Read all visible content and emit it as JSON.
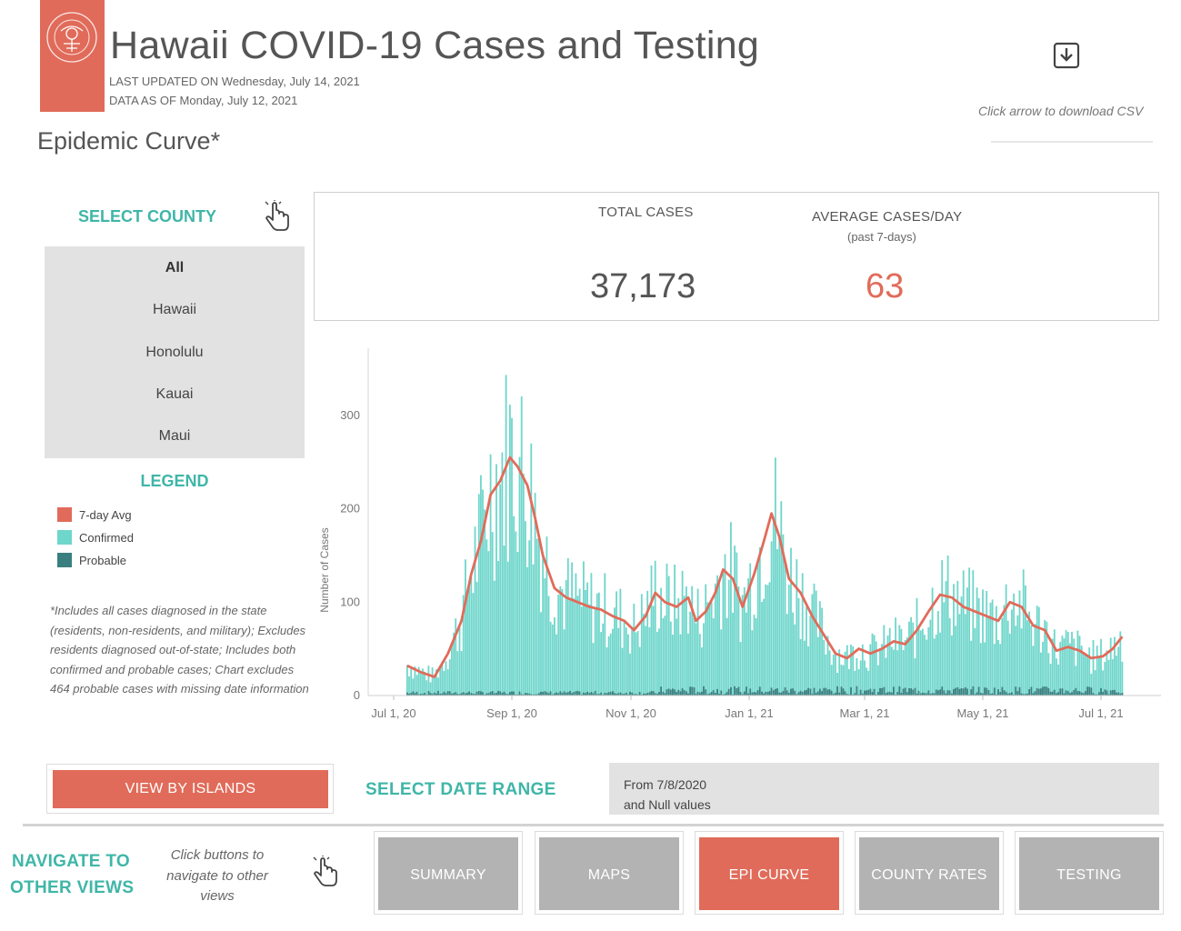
{
  "header": {
    "title": "Hawaii COVID-19 Cases and Testing",
    "last_updated": "LAST UPDATED ON Wednesday, July 14, 2021",
    "data_as_of": "DATA AS OF Monday, July 12, 2021",
    "download_hint": "Click arrow to download CSV",
    "download_icon": "download-arrow-icon",
    "logo": "state-seal-logo"
  },
  "section_title": "Epidemic Curve*",
  "county_filter": {
    "heading": "SELECT COUNTY",
    "options": [
      "All",
      "Hawaii",
      "Honolulu",
      "Kauai",
      "Maui"
    ],
    "selected": "All"
  },
  "legend": {
    "heading": "LEGEND",
    "items": [
      {
        "label": "7-day Avg",
        "color": "#e16b5a"
      },
      {
        "label": "Confirmed",
        "color": "#6fd6cb"
      },
      {
        "label": "Probable",
        "color": "#3a7f80"
      }
    ]
  },
  "footnote": "*Includes all cases diagnosed in the state (residents, non-residents, and military); Excludes residents diagnosed out-of-state; Includes both confirmed and probable cases; Chart excludes 464 probable cases with missing date information",
  "kpis": {
    "total_label": "TOTAL CASES",
    "total_value": "37,173",
    "avg_label": "AVERAGE CASES/DAY",
    "avg_sub": "(past 7-days)",
    "avg_value": "63"
  },
  "chart_data": {
    "type": "bar",
    "ylabel": "Number of Cases",
    "xlabel": "",
    "ylim": [
      0,
      370
    ],
    "yticks": [
      0,
      100,
      200,
      300
    ],
    "xticks": [
      "Jul 1, 20",
      "Sep 1, 20",
      "Nov 1, 20",
      "Jan 1, 21",
      "Mar 1, 21",
      "May 1, 21",
      "Jul 1, 21"
    ],
    "x_start": "2020-07-08",
    "x_end": "2021-07-12",
    "series": [
      {
        "name": "Confirmed",
        "color": "#6fd6cb"
      },
      {
        "name": "Probable",
        "color": "#3a7f80"
      },
      {
        "name": "7-day Avg",
        "color": "#e16b5a"
      }
    ],
    "avg_points": [
      [
        "2020-07-08",
        32
      ],
      [
        "2020-07-15",
        25
      ],
      [
        "2020-07-22",
        20
      ],
      [
        "2020-07-29",
        45
      ],
      [
        "2020-08-05",
        80
      ],
      [
        "2020-08-10",
        130
      ],
      [
        "2020-08-15",
        165
      ],
      [
        "2020-08-20",
        215
      ],
      [
        "2020-08-25",
        230
      ],
      [
        "2020-08-30",
        255
      ],
      [
        "2020-09-03",
        245
      ],
      [
        "2020-09-08",
        225
      ],
      [
        "2020-09-12",
        190
      ],
      [
        "2020-09-16",
        150
      ],
      [
        "2020-09-22",
        115
      ],
      [
        "2020-09-28",
        105
      ],
      [
        "2020-10-04",
        100
      ],
      [
        "2020-10-10",
        95
      ],
      [
        "2020-10-16",
        92
      ],
      [
        "2020-10-22",
        85
      ],
      [
        "2020-10-28",
        80
      ],
      [
        "2020-11-02",
        70
      ],
      [
        "2020-11-08",
        85
      ],
      [
        "2020-11-13",
        110
      ],
      [
        "2020-11-18",
        100
      ],
      [
        "2020-11-24",
        95
      ],
      [
        "2020-11-30",
        105
      ],
      [
        "2020-12-04",
        80
      ],
      [
        "2020-12-09",
        90
      ],
      [
        "2020-12-14",
        110
      ],
      [
        "2020-12-18",
        135
      ],
      [
        "2020-12-23",
        125
      ],
      [
        "2020-12-28",
        95
      ],
      [
        "2021-01-03",
        130
      ],
      [
        "2021-01-08",
        165
      ],
      [
        "2021-01-12",
        195
      ],
      [
        "2021-01-16",
        170
      ],
      [
        "2021-01-21",
        125
      ],
      [
        "2021-01-27",
        110
      ],
      [
        "2021-02-02",
        85
      ],
      [
        "2021-02-08",
        65
      ],
      [
        "2021-02-14",
        45
      ],
      [
        "2021-02-20",
        40
      ],
      [
        "2021-02-26",
        50
      ],
      [
        "2021-03-04",
        45
      ],
      [
        "2021-03-10",
        50
      ],
      [
        "2021-03-16",
        58
      ],
      [
        "2021-03-22",
        55
      ],
      [
        "2021-03-28",
        70
      ],
      [
        "2021-04-03",
        90
      ],
      [
        "2021-04-09",
        108
      ],
      [
        "2021-04-15",
        105
      ],
      [
        "2021-04-21",
        95
      ],
      [
        "2021-04-27",
        90
      ],
      [
        "2021-05-03",
        85
      ],
      [
        "2021-05-09",
        80
      ],
      [
        "2021-05-15",
        100
      ],
      [
        "2021-05-21",
        95
      ],
      [
        "2021-05-27",
        75
      ],
      [
        "2021-06-02",
        70
      ],
      [
        "2021-06-08",
        48
      ],
      [
        "2021-06-14",
        52
      ],
      [
        "2021-06-20",
        48
      ],
      [
        "2021-06-26",
        40
      ],
      [
        "2021-07-02",
        42
      ],
      [
        "2021-07-07",
        50
      ],
      [
        "2021-07-12",
        63
      ]
    ]
  },
  "date_filter": {
    "heading": "SELECT DATE RANGE",
    "line1": "From 7/8/2020",
    "line2": "and Null values"
  },
  "views_button": "VIEW BY ISLANDS",
  "navigation": {
    "heading_line1": "NAVIGATE TO",
    "heading_line2": "OTHER VIEWS",
    "hint": "Click buttons to navigate to other views",
    "buttons": [
      "SUMMARY",
      "MAPS",
      "EPI CURVE",
      "COUNTY RATES",
      "TESTING"
    ],
    "active": "EPI CURVE"
  }
}
